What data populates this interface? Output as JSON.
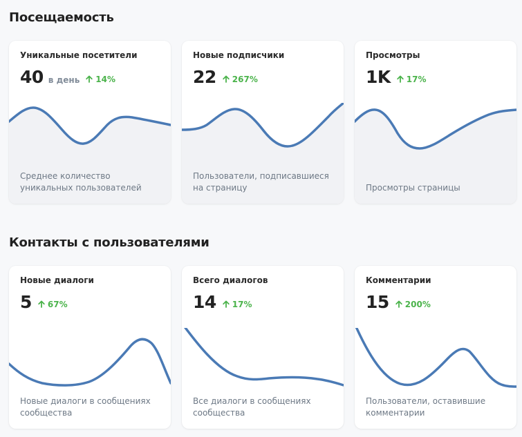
{
  "colors": {
    "line": "#4a7ab5",
    "area": "#f1f2f5",
    "positive": "#4bb34b"
  },
  "sections": [
    {
      "title": "Посещаемость",
      "cards": [
        {
          "title": "Уникальные посетители",
          "value": "40",
          "unit": "в день",
          "change": "14%",
          "trend_icon": "arrow-up-icon",
          "description": "Среднее количество уникальных пользователей"
        },
        {
          "title": "Новые подписчики",
          "value": "22",
          "unit": "",
          "change": "267%",
          "trend_icon": "arrow-up-icon",
          "description": "Пользователи, подписавшиеся на страницу"
        },
        {
          "title": "Просмотры",
          "value": "1K",
          "unit": "",
          "change": "17%",
          "trend_icon": "arrow-up-icon",
          "description": "Просмотры страницы"
        }
      ]
    },
    {
      "title": "Контакты с пользователями",
      "cards": [
        {
          "title": "Новые диалоги",
          "value": "5",
          "unit": "",
          "change": "67%",
          "trend_icon": "arrow-up-icon",
          "description": "Новые диалоги в сообщениях сообщества"
        },
        {
          "title": "Всего диалогов",
          "value": "14",
          "unit": "",
          "change": "17%",
          "trend_icon": "arrow-up-icon",
          "description": "Все диалоги в сообщениях сообщества"
        },
        {
          "title": "Комментарии",
          "value": "15",
          "unit": "",
          "change": "200%",
          "trend_icon": "arrow-up-icon",
          "description": "Пользователи, оставившие комментарии"
        }
      ]
    }
  ]
}
